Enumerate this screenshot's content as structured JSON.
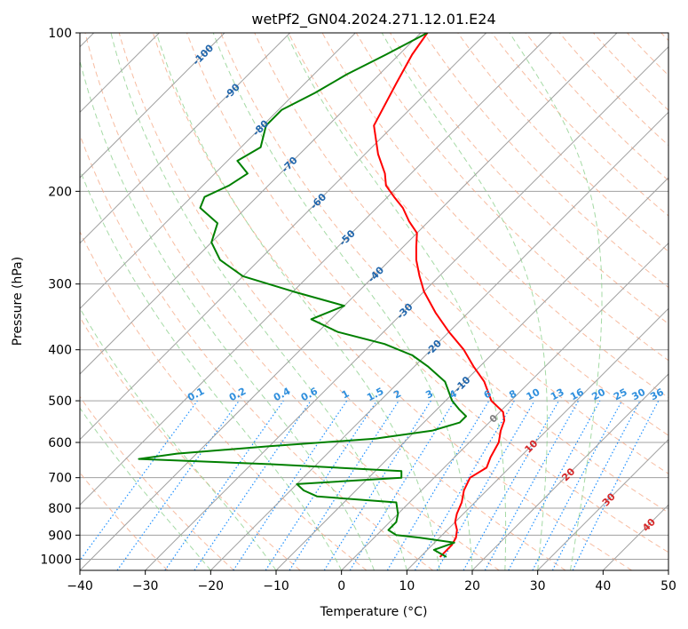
{
  "chart_data": {
    "type": "line",
    "title": "wetPf2_GN04.2024.271.12.01.E24",
    "xlabel": "Temperature (°C)",
    "ylabel": "Pressure (hPa)",
    "xlim": [
      -40,
      50
    ],
    "ylim": [
      1050,
      100
    ],
    "y_scale": "log",
    "grid": true,
    "x_ticks": [
      -40,
      -30,
      -20,
      -10,
      0,
      10,
      20,
      30,
      40,
      50
    ],
    "y_ticks": [
      100,
      200,
      300,
      400,
      500,
      600,
      700,
      800,
      900,
      1000
    ],
    "skew_diagram": "skew-T log-p",
    "colors": {
      "temperature": "#ff0000",
      "dewpoint": "#008000",
      "isotherm": "#a0a0a0",
      "dry_adiabat": "#f4a582",
      "moist_adiabat": "#8fd18f",
      "mixing_ratio": "#1e90ff",
      "mixing_ratio_label": "#2f8fdd",
      "isotherm_label": "#2166ac",
      "ccl_label": "#d62728"
    },
    "series": [
      {
        "key": "temperature",
        "pressure": [
          100,
          110,
          125,
          150,
          170,
          185,
          195,
          205,
          215,
          228,
          240,
          255,
          270,
          290,
          310,
          340,
          370,
          400,
          430,
          460,
          500,
          525,
          545,
          570,
          600,
          640,
          670,
          700,
          740,
          780,
          820,
          850,
          880,
          910,
          940,
          990
        ],
        "values": [
          -69,
          -68,
          -66,
          -63,
          -58,
          -54,
          -52,
          -49,
          -46,
          -43,
          -40,
          -38,
          -36,
          -33,
          -30,
          -25,
          -20,
          -15,
          -11,
          -7,
          -3,
          0.5,
          2,
          3,
          4.5,
          5.5,
          6.5,
          5.5,
          6.5,
          8,
          9,
          10,
          11.5,
          12.5,
          13,
          13
        ]
      },
      {
        "key": "dewpoint",
        "pressure": [
          100,
          110,
          120,
          130,
          140,
          150,
          165,
          175,
          185,
          195,
          205,
          215,
          230,
          250,
          270,
          290,
          310,
          330,
          350,
          370,
          390,
          410,
          430,
          460,
          500,
          520,
          535,
          550,
          570,
          590,
          610,
          630,
          645,
          660,
          680,
          700,
          720,
          740,
          760,
          780,
          820,
          850,
          880,
          900,
          910,
          930,
          960,
          990
        ],
        "values": [
          -69,
          -72,
          -75,
          -77,
          -79.5,
          -79.5,
          -77,
          -78.5,
          -75,
          -76,
          -78,
          -77,
          -72,
          -70,
          -66,
          -60,
          -50,
          -40,
          -43,
          -37,
          -28,
          -22,
          -18,
          -13,
          -9,
          -6.5,
          -4.5,
          -4.5,
          -7.5,
          -15,
          -30,
          -43,
          -48,
          -27,
          -6,
          -5,
          -20,
          -18,
          -15,
          -2,
          0,
          1,
          1,
          3,
          7,
          13,
          11,
          14
        ]
      }
    ],
    "isotherm_labels": [
      {
        "text": "-100",
        "value": -100
      },
      {
        "text": "-90",
        "value": -90
      },
      {
        "text": "-80",
        "value": -80
      },
      {
        "text": "-70",
        "value": -70
      },
      {
        "text": "-60",
        "value": -60
      },
      {
        "text": "-50",
        "value": -50
      },
      {
        "text": "-40",
        "value": -40
      },
      {
        "text": "-30",
        "value": -30
      },
      {
        "text": "-20",
        "value": -20
      },
      {
        "text": "-10",
        "value": -10
      }
    ],
    "mixing_ratio_lines": [
      {
        "text": "0.1",
        "value": 0.1
      },
      {
        "text": "0.2",
        "value": 0.2
      },
      {
        "text": "0.4",
        "value": 0.4
      },
      {
        "text": "0.6",
        "value": 0.6
      },
      {
        "text": "1",
        "value": 1
      },
      {
        "text": "1.5",
        "value": 1.5
      },
      {
        "text": "2",
        "value": 2
      },
      {
        "text": "3",
        "value": 3
      },
      {
        "text": "4",
        "value": 4
      },
      {
        "text": "6",
        "value": 6
      },
      {
        "text": "8",
        "value": 8
      },
      {
        "text": "10",
        "value": 10
      },
      {
        "text": "13",
        "value": 13
      },
      {
        "text": "16",
        "value": 16
      },
      {
        "text": "20",
        "value": 20
      },
      {
        "text": "25",
        "value": 25
      },
      {
        "text": "30",
        "value": 30
      },
      {
        "text": "36",
        "value": 36
      }
    ],
    "ccl_labels": [
      {
        "text": "0",
        "color": "gray"
      },
      {
        "text": "10",
        "color": "red"
      },
      {
        "text": "20",
        "color": "red"
      },
      {
        "text": "30",
        "color": "red"
      },
      {
        "text": "40",
        "color": "red"
      }
    ]
  }
}
